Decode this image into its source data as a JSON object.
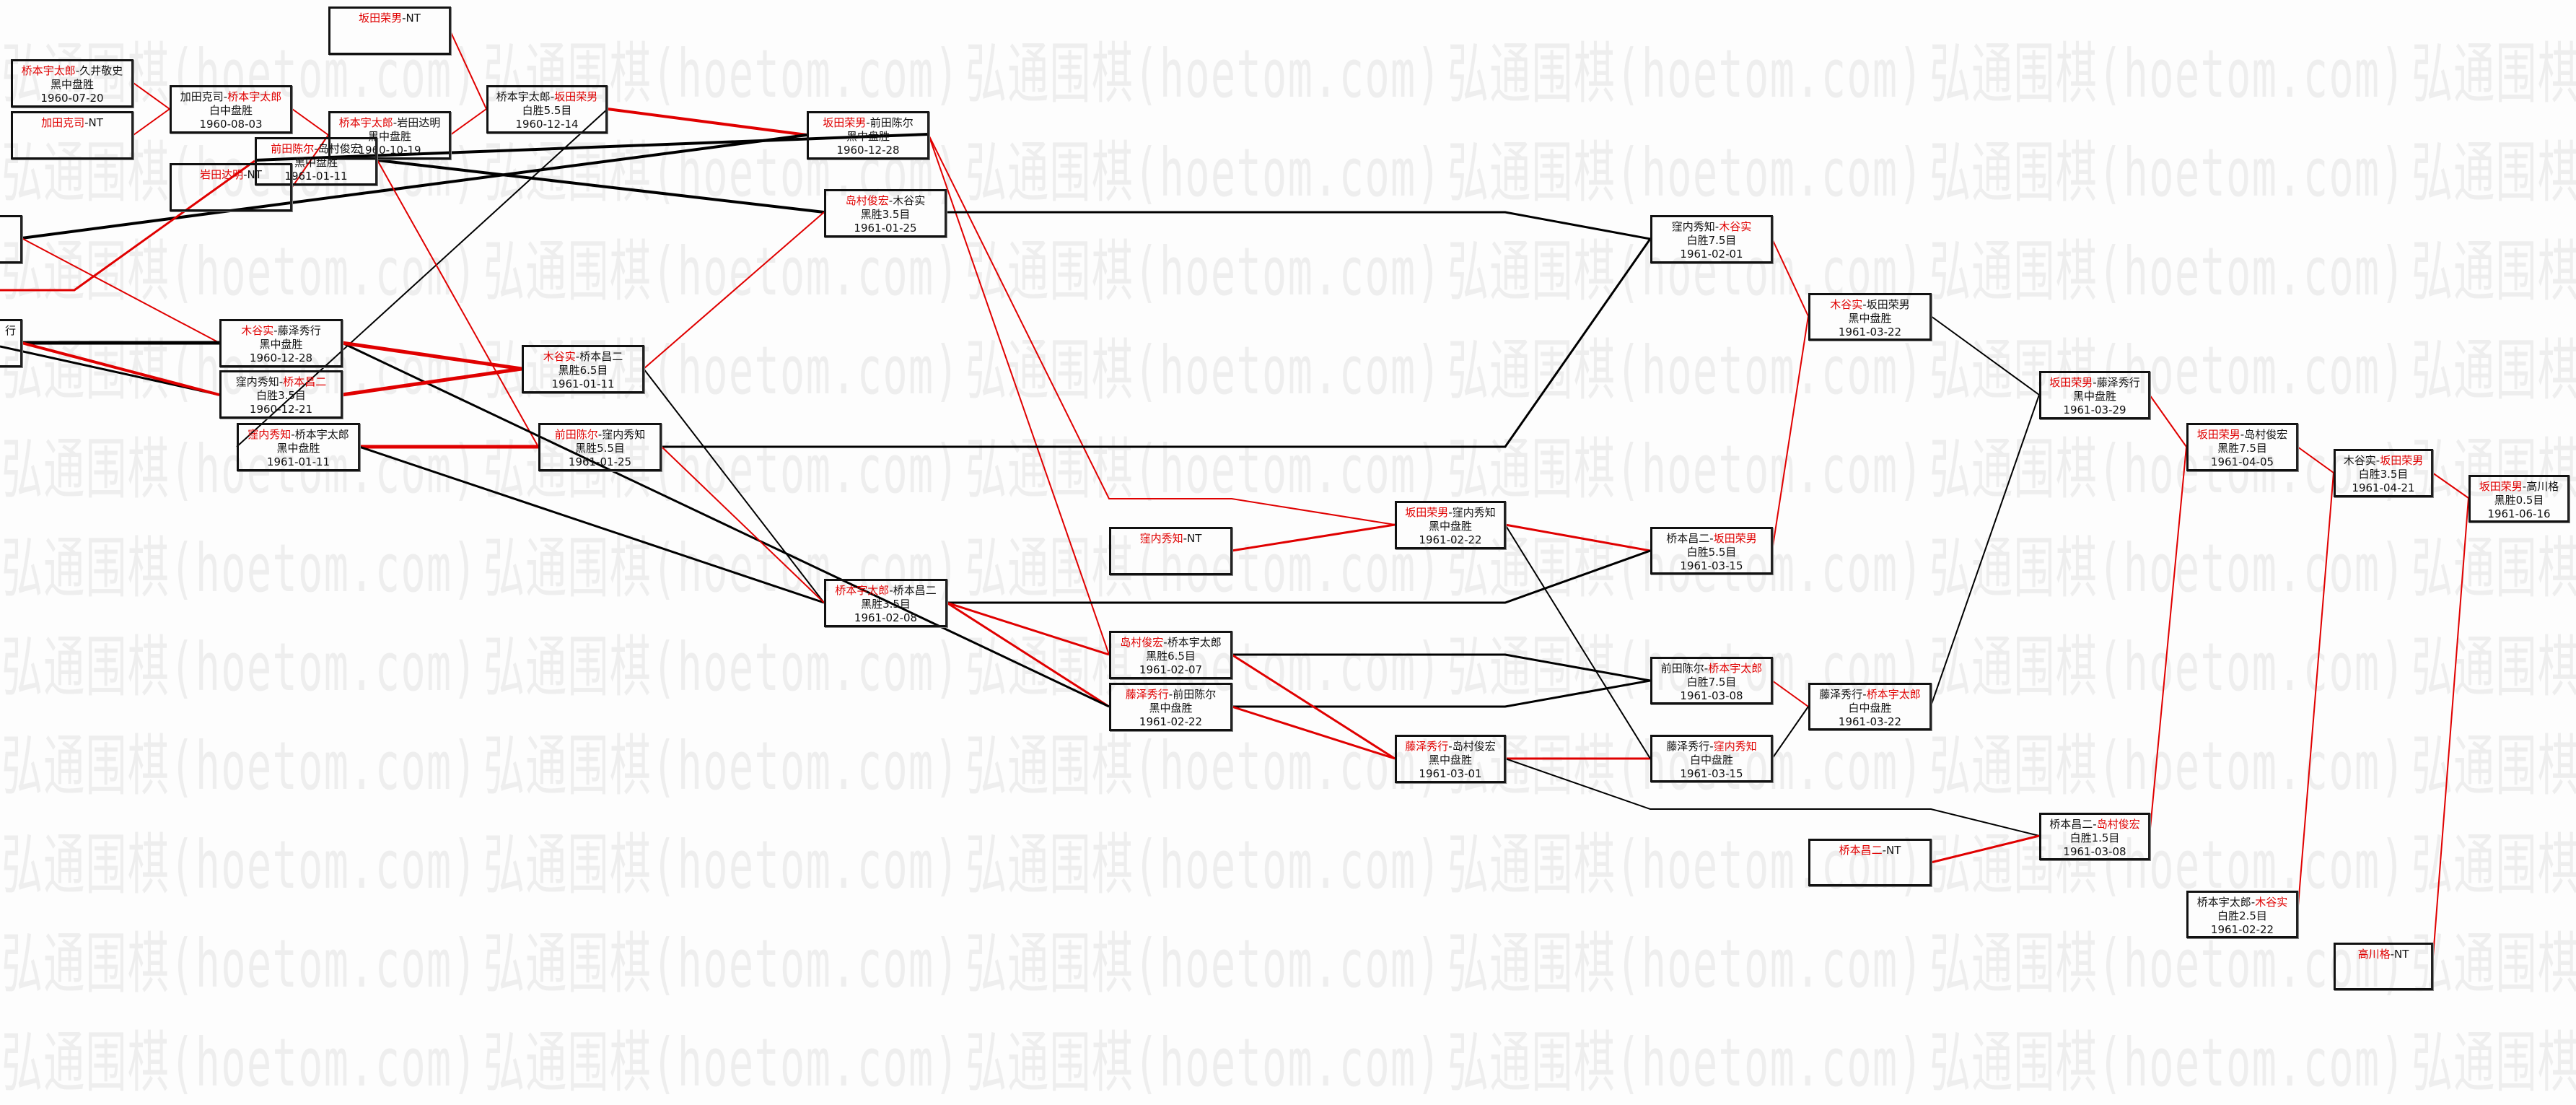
{
  "watermark": "弘通围棋(hoetom.com)",
  "colors": {
    "winner": "#e00000",
    "text": "#111111",
    "line_winner": "#e00000",
    "line_loser": "#000000"
  },
  "nodes": [
    {
      "a": "坂田荣男",
      "b": "NT",
      "red": "a"
    },
    {
      "a": "桥本宇太郎",
      "b": "久井敬史",
      "red": "a",
      "result": "黑中盘胜",
      "date": "1960-07-20"
    },
    {
      "a": "加田克司",
      "b": "NT",
      "red": "a"
    },
    {
      "a": "加田克司",
      "b": "桥本宇太郎",
      "red": "b",
      "result": "白中盘胜",
      "date": "1960-08-03"
    },
    {
      "a": "桥本宇太郎",
      "b": "岩田达明",
      "red": "a",
      "result": "黑中盘胜",
      "date": "1960-10-19"
    },
    {
      "a": "前田陈尔",
      "b": "岛村俊宏",
      "red": "a",
      "result": "黑中盘胜",
      "date": "1961-01-11"
    },
    {
      "a": "岩田达明",
      "b": "NT",
      "red": "a"
    },
    {
      "a": "桥本宇太郎",
      "b": "坂田荣男",
      "red": "b",
      "result": "白胜5.5目",
      "date": "1960-12-14"
    },
    {
      "a": "坂田荣男",
      "b": "前田陈尔",
      "red": "a",
      "result": "黑中盘胜",
      "date": "1960-12-28"
    },
    {
      "a": "岛村俊宏",
      "b": "木谷实",
      "red": "a",
      "result": "黑胜3.5目",
      "date": "1961-01-25"
    },
    {
      "fragment": ""
    },
    {
      "fragment": "行"
    },
    {
      "a": "木谷实",
      "b": "藤泽秀行",
      "red": "a",
      "result": "黑中盘胜",
      "date": "1960-12-28"
    },
    {
      "a": "窪内秀知",
      "b": "桥本昌二",
      "red": "b",
      "result": "白胜3.5目",
      "date": "1960-12-21"
    },
    {
      "a": "窪内秀知",
      "b": "桥本宇太郎",
      "red": "a",
      "result": "黑中盘胜",
      "date": "1961-01-11"
    },
    {
      "a": "木谷实",
      "b": "桥本昌二",
      "red": "a",
      "result": "黑胜6.5目",
      "date": "1961-01-11"
    },
    {
      "a": "前田陈尔",
      "b": "窪内秀知",
      "red": "a",
      "result": "黑胜5.5目",
      "date": "1961-01-25"
    },
    {
      "a": "桥本宇太郎",
      "b": "桥本昌二",
      "red": "a",
      "result": "黑胜3.5目",
      "date": "1961-02-08"
    },
    {
      "a": "窪内秀知",
      "b": "NT",
      "red": "a"
    },
    {
      "a": "坂田荣男",
      "b": "窪内秀知",
      "red": "a",
      "result": "黑中盘胜",
      "date": "1961-02-22"
    },
    {
      "a": "岛村俊宏",
      "b": "桥本宇太郎",
      "red": "a",
      "result": "黑胜6.5目",
      "date": "1961-02-07"
    },
    {
      "a": "藤泽秀行",
      "b": "前田陈尔",
      "red": "a",
      "result": "黑中盘胜",
      "date": "1961-02-22"
    },
    {
      "a": "藤泽秀行",
      "b": "岛村俊宏",
      "red": "a",
      "result": "黑中盘胜",
      "date": "1961-03-01"
    },
    {
      "a": "窪内秀知",
      "b": "木谷实",
      "red": "b",
      "result": "白胜7.5目",
      "date": "1961-02-01"
    },
    {
      "a": "木谷实",
      "b": "坂田荣男",
      "red": "a",
      "result": "黑中盘胜",
      "date": "1961-03-22"
    },
    {
      "a": "坂田荣男",
      "b": "藤泽秀行",
      "red": "a",
      "result": "黑中盘胜",
      "date": "1961-03-29"
    },
    {
      "a": "坂田荣男",
      "b": "岛村俊宏",
      "red": "a",
      "result": "黑胜7.5目",
      "date": "1961-04-05"
    },
    {
      "a": "木谷实",
      "b": "坂田荣男",
      "red": "b",
      "result": "白胜3.5目",
      "date": "1961-04-21"
    },
    {
      "a": "坂田荣男",
      "b": "高川格",
      "red": "a",
      "result": "黑胜0.5目",
      "date": "1961-06-16"
    },
    {
      "a": "桥本昌二",
      "b": "坂田荣男",
      "red": "b",
      "result": "白胜5.5目",
      "date": "1961-03-15"
    },
    {
      "a": "前田陈尔",
      "b": "桥本宇太郎",
      "red": "b",
      "result": "白胜7.5目",
      "date": "1961-03-08"
    },
    {
      "a": "藤泽秀行",
      "b": "窪内秀知",
      "red": "b",
      "result": "白中盘胜",
      "date": "1961-03-15"
    },
    {
      "a": "藤泽秀行",
      "b": "桥本宇太郎",
      "red": "b",
      "result": "白中盘胜",
      "date": "1961-03-22"
    },
    {
      "a": "桥本昌二",
      "b": "NT",
      "red": "a"
    },
    {
      "a": "桥本昌二",
      "b": "岛村俊宏",
      "red": "b",
      "result": "白胜1.5目",
      "date": "1961-03-08"
    },
    {
      "a": "桥本宇太郎",
      "b": "木谷实",
      "red": "b",
      "result": "白胜2.5目",
      "date": "1961-02-22"
    },
    {
      "a": "高川格",
      "b": "NT",
      "red": "a"
    }
  ]
}
